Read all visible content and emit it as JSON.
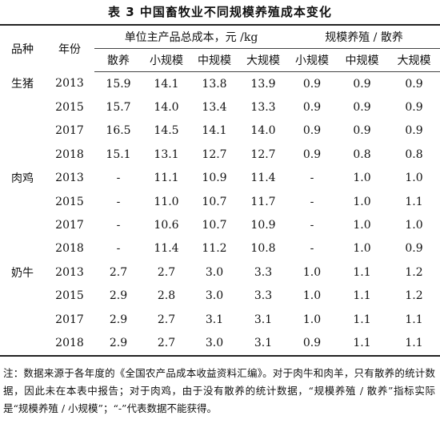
{
  "title": "表 3  中国畜牧业不同规模养殖成本变化",
  "header": {
    "species": "品种",
    "year": "年份",
    "group_cost": "单位主产品总成本，元 /kg",
    "group_ratio": "规模养殖 / 散养",
    "cost_cols": [
      "散养",
      "小规模",
      "中规模",
      "大规模"
    ],
    "ratio_cols": [
      "小规模",
      "中规模",
      "大规模"
    ]
  },
  "rows": [
    {
      "species": "生猪",
      "year": "2013",
      "cost": [
        "15.9",
        "14.1",
        "13.8",
        "13.9"
      ],
      "ratio": [
        "0.9",
        "0.9",
        "0.9"
      ]
    },
    {
      "species": "",
      "year": "2015",
      "cost": [
        "15.7",
        "14.0",
        "13.4",
        "13.3"
      ],
      "ratio": [
        "0.9",
        "0.9",
        "0.9"
      ]
    },
    {
      "species": "",
      "year": "2017",
      "cost": [
        "16.5",
        "14.5",
        "14.1",
        "14.0"
      ],
      "ratio": [
        "0.9",
        "0.9",
        "0.9"
      ]
    },
    {
      "species": "",
      "year": "2018",
      "cost": [
        "15.1",
        "13.1",
        "12.7",
        "12.7"
      ],
      "ratio": [
        "0.9",
        "0.8",
        "0.8"
      ]
    },
    {
      "species": "肉鸡",
      "year": "2013",
      "cost": [
        "-",
        "11.1",
        "10.9",
        "11.4"
      ],
      "ratio": [
        "-",
        "1.0",
        "1.0"
      ]
    },
    {
      "species": "",
      "year": "2015",
      "cost": [
        "-",
        "11.0",
        "10.7",
        "11.7"
      ],
      "ratio": [
        "-",
        "1.0",
        "1.1"
      ]
    },
    {
      "species": "",
      "year": "2017",
      "cost": [
        "-",
        "10.6",
        "10.7",
        "10.9"
      ],
      "ratio": [
        "-",
        "1.0",
        "1.0"
      ]
    },
    {
      "species": "",
      "year": "2018",
      "cost": [
        "-",
        "11.4",
        "11.2",
        "10.8"
      ],
      "ratio": [
        "-",
        "1.0",
        "0.9"
      ]
    },
    {
      "species": "奶牛",
      "year": "2013",
      "cost": [
        "2.7",
        "2.7",
        "3.0",
        "3.3"
      ],
      "ratio": [
        "1.0",
        "1.1",
        "1.2"
      ]
    },
    {
      "species": "",
      "year": "2015",
      "cost": [
        "2.9",
        "2.8",
        "3.0",
        "3.3"
      ],
      "ratio": [
        "1.0",
        "1.1",
        "1.2"
      ]
    },
    {
      "species": "",
      "year": "2017",
      "cost": [
        "2.9",
        "2.7",
        "3.1",
        "3.1"
      ],
      "ratio": [
        "1.0",
        "1.1",
        "1.1"
      ]
    },
    {
      "species": "",
      "year": "2018",
      "cost": [
        "2.9",
        "2.7",
        "3.0",
        "3.1"
      ],
      "ratio": [
        "0.9",
        "1.1",
        "1.1"
      ]
    }
  ],
  "note": "注：数据来源于各年度的《全国农产品成本收益资料汇编》。对于肉牛和肉羊，只有散养的统计数据，因此未在本表中报告；对于肉鸡，由于没有散养的统计数据，“规模养殖 / 散养”指标实际是“规模养殖 / 小规模”；“-”代表数据不能获得。"
}
